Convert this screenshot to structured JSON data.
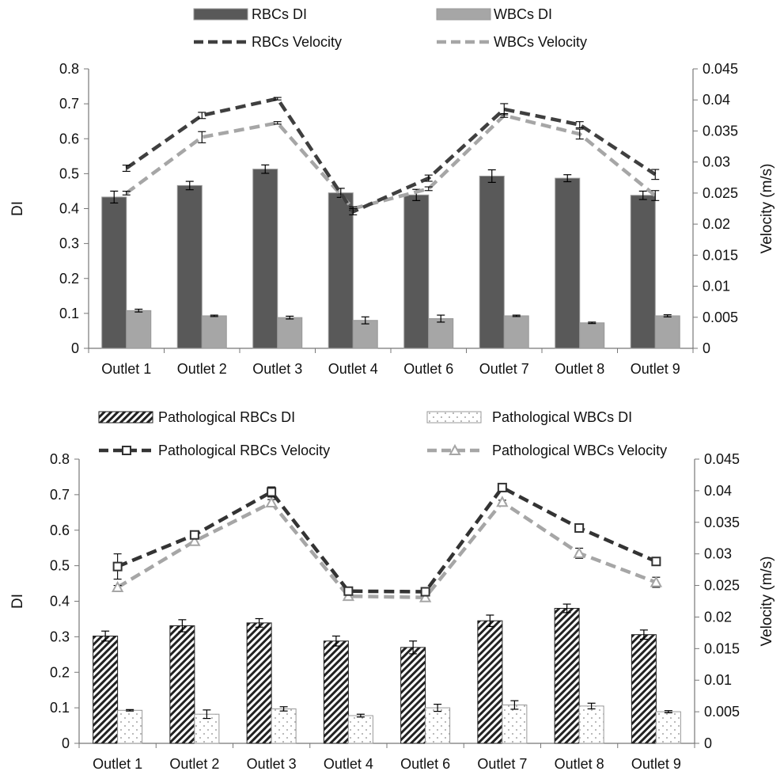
{
  "chart_data": [
    {
      "type": "bar",
      "title": "",
      "categories": [
        "Outlet 1",
        "Outlet 2",
        "Outlet 3",
        "Outlet 4",
        "Outlet 6",
        "Outlet 7",
        "Outlet 8",
        "Outlet 9"
      ],
      "ylabel": "DI",
      "y2label": "Velocity (m/s)",
      "ylim": [
        0,
        0.8
      ],
      "y2lim": [
        0,
        0.045
      ],
      "yticks": [
        "0",
        "0.1",
        "0.2",
        "0.3",
        "0.4",
        "0.5",
        "0.6",
        "0.7",
        "0.8"
      ],
      "y2ticks": [
        "0",
        "0.005",
        "0.01",
        "0.015",
        "0.02",
        "0.025",
        "0.03",
        "0.035",
        "0.04",
        "0.045"
      ],
      "legend_placement": "top",
      "series": [
        {
          "name": "RBCs DI",
          "kind": "bar",
          "axis": "left",
          "pattern": "solid",
          "color": "#595959",
          "values": [
            0.433,
            0.466,
            0.513,
            0.445,
            0.439,
            0.493,
            0.487,
            0.438
          ],
          "errors": [
            0.017,
            0.012,
            0.012,
            0.013,
            0.016,
            0.018,
            0.01,
            0.012
          ]
        },
        {
          "name": "WBCs DI",
          "kind": "bar",
          "axis": "left",
          "pattern": "solid",
          "color": "#a6a6a6",
          "values": [
            0.108,
            0.093,
            0.088,
            0.08,
            0.085,
            0.093,
            0.073,
            0.093
          ],
          "errors": [
            0.004,
            0.002,
            0.004,
            0.01,
            0.01,
            0.002,
            0.002,
            0.003
          ]
        },
        {
          "name": "RBCs Velocity",
          "kind": "line",
          "axis": "right",
          "color": "#3f3f3f",
          "marker": "none",
          "values": [
            0.029,
            0.0375,
            0.0402,
            0.022,
            0.0274,
            0.0385,
            0.036,
            0.028
          ],
          "errors": [
            0.0005,
            0.0005,
            0.0002,
            0.0005,
            0.0005,
            0.0009,
            0.0005,
            0.0008
          ]
        },
        {
          "name": "WBCs Velocity",
          "kind": "line",
          "axis": "right",
          "color": "#a6a6a6",
          "marker": "none",
          "values": [
            0.025,
            0.034,
            0.0363,
            0.0225,
            0.0257,
            0.0375,
            0.0345,
            0.0246
          ],
          "errors": [
            0.0003,
            0.0009,
            0.0002,
            0.0003,
            0.0003,
            0.0003,
            0.0008,
            0.0008
          ]
        }
      ]
    },
    {
      "type": "bar",
      "title": "",
      "categories": [
        "Outlet 1",
        "Outlet 2",
        "Outlet 3",
        "Outlet 4",
        "Outlet 6",
        "Outlet 7",
        "Outlet 8",
        "Outlet 9"
      ],
      "ylabel": "DI",
      "y2label": "Velocity (m/s)",
      "ylim": [
        0,
        0.8
      ],
      "y2lim": [
        0,
        0.045
      ],
      "yticks": [
        "0",
        "0.1",
        "0.2",
        "0.3",
        "0.4",
        "0.5",
        "0.6",
        "0.7",
        "0.8"
      ],
      "y2ticks": [
        "0",
        "0.005",
        "0.01",
        "0.015",
        "0.02",
        "0.025",
        "0.03",
        "0.035",
        "0.04",
        "0.045"
      ],
      "legend_placement": "top",
      "series": [
        {
          "name": "Pathological RBCs DI",
          "kind": "bar",
          "axis": "left",
          "pattern": "hatch",
          "color": "#222222",
          "values": [
            0.302,
            0.331,
            0.339,
            0.288,
            0.27,
            0.345,
            0.38,
            0.306
          ],
          "errors": [
            0.014,
            0.017,
            0.012,
            0.014,
            0.018,
            0.016,
            0.012,
            0.013
          ]
        },
        {
          "name": "Pathological WBCs DI",
          "kind": "bar",
          "axis": "left",
          "pattern": "dots",
          "color": "#a6a6a6",
          "values": [
            0.093,
            0.082,
            0.097,
            0.078,
            0.1,
            0.108,
            0.105,
            0.089
          ],
          "errors": [
            0.002,
            0.012,
            0.006,
            0.004,
            0.01,
            0.012,
            0.008,
            0.003
          ]
        },
        {
          "name": "Pathological RBCs Velocity",
          "kind": "line",
          "axis": "right",
          "color": "#333333",
          "marker": "square",
          "values": [
            0.028,
            0.033,
            0.0398,
            0.0241,
            0.024,
            0.0405,
            0.0341,
            0.0288
          ],
          "errors": [
            0.002,
            0.0004,
            0.0008,
            0.0003,
            0.0003,
            0.0003,
            0.0003,
            0.0003
          ]
        },
        {
          "name": "Pathological WBCs Velocity",
          "kind": "line",
          "axis": "right",
          "color": "#a6a6a6",
          "marker": "triangle",
          "values": [
            0.0247,
            0.032,
            0.0381,
            0.0233,
            0.0231,
            0.0382,
            0.0301,
            0.0255
          ],
          "errors": [
            0.0003,
            0.0004,
            0.0005,
            0.0003,
            0.0003,
            0.0003,
            0.0008,
            0.0008
          ]
        }
      ]
    }
  ]
}
